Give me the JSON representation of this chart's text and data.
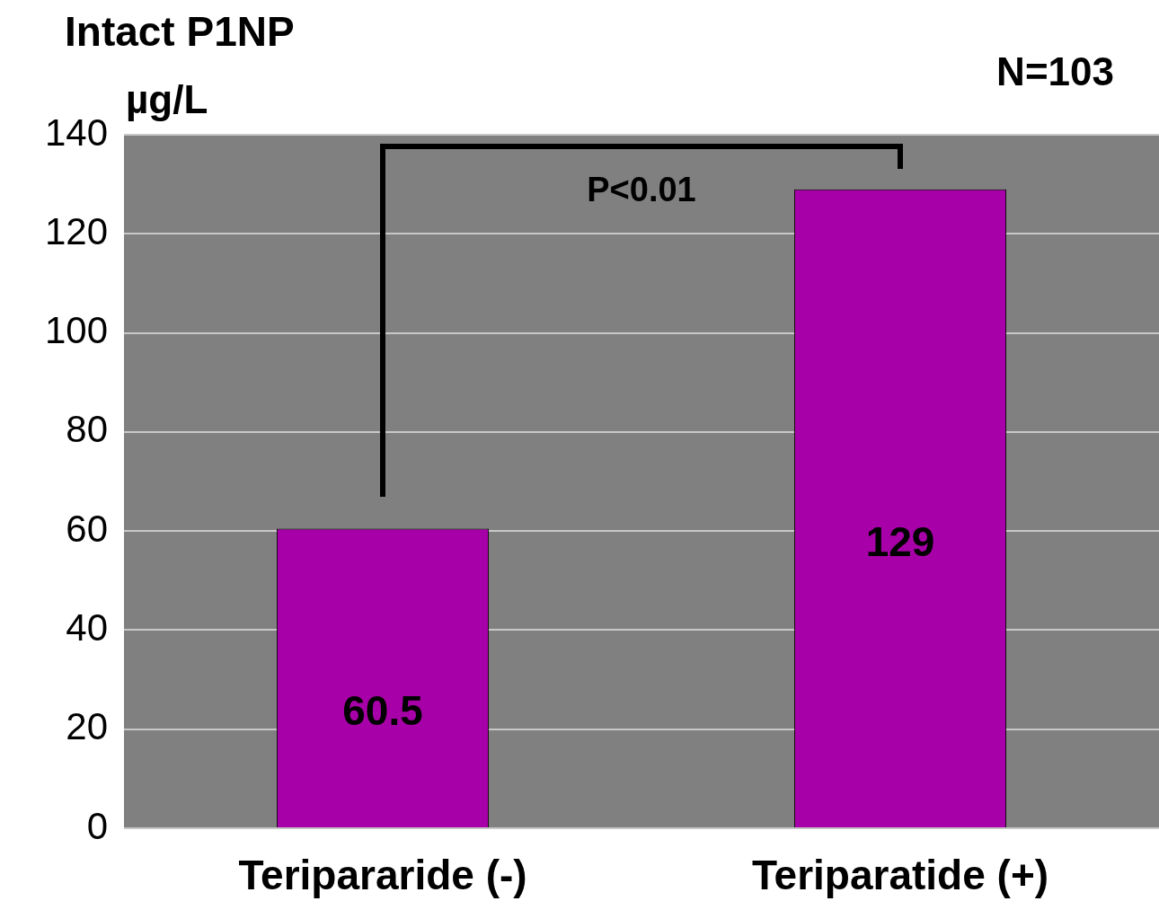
{
  "chart_data": {
    "type": "bar",
    "title": "Intact P1NP",
    "ylabel": "µg/L",
    "categories": [
      "Teripararide (-)",
      "Teriparatide (+)"
    ],
    "values": [
      60.5,
      129
    ],
    "color": "#a800a8",
    "ylim": [
      0,
      140
    ],
    "yticks": [
      0,
      20,
      40,
      60,
      80,
      100,
      120,
      140
    ],
    "grid": "y",
    "data_labels": true,
    "annotations": [
      "P<0.01",
      "N=103"
    ]
  }
}
